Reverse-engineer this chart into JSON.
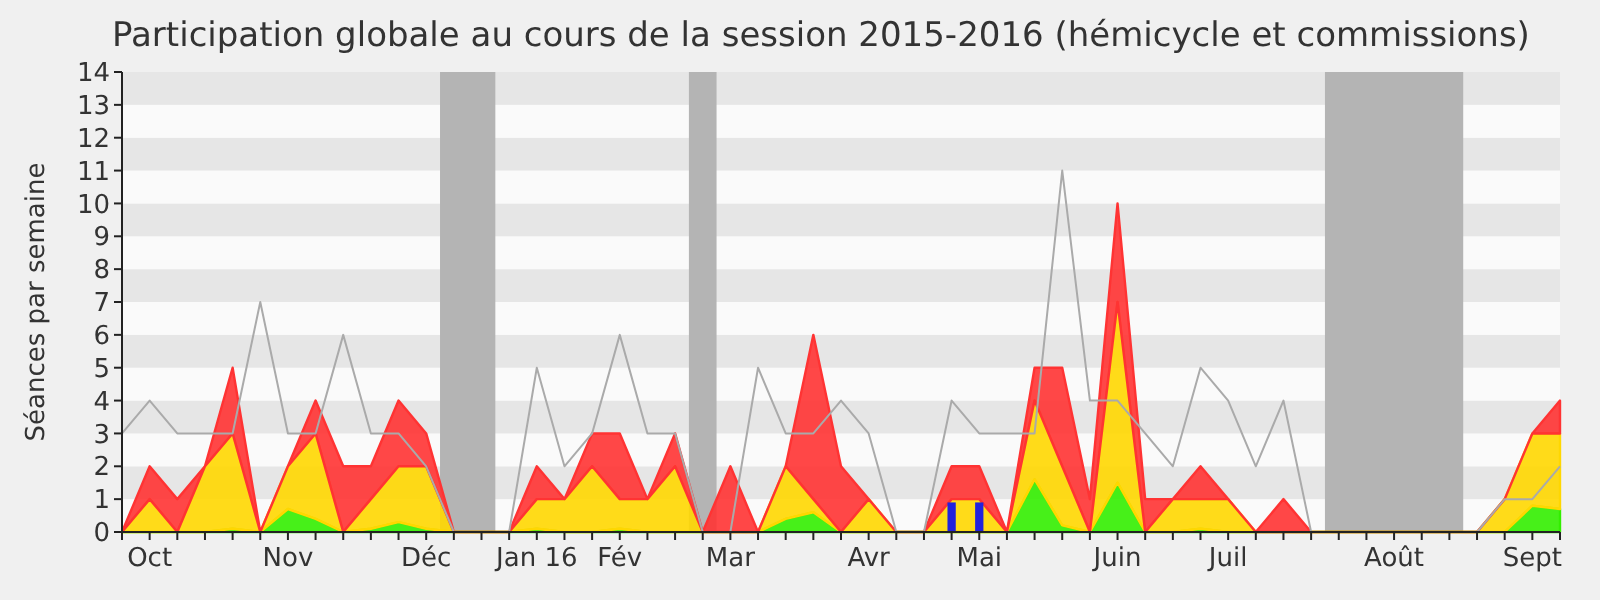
{
  "chart_data": {
    "type": "area",
    "title": "Participation globale au cours de la session 2015-2016 (hémicycle et commissions)",
    "ylabel": "Séances par semaine",
    "stacked": true,
    "categories": [
      null,
      "Oct",
      null,
      null,
      null,
      null,
      "Nov",
      null,
      null,
      null,
      null,
      "Déc",
      null,
      null,
      null,
      "Jan 16",
      null,
      null,
      "Fév",
      null,
      null,
      null,
      "Mar",
      null,
      null,
      null,
      null,
      "Avr",
      null,
      null,
      null,
      "Mai",
      null,
      null,
      null,
      null,
      "Juin",
      null,
      null,
      null,
      "Juil",
      null,
      null,
      null,
      null,
      null,
      "Août",
      null,
      null,
      null,
      null,
      "Sept",
      null
    ],
    "ylim": [
      0,
      14
    ],
    "yticks": [
      0,
      1,
      2,
      3,
      4,
      5,
      6,
      7,
      8,
      9,
      10,
      11,
      12,
      13,
      14
    ],
    "series": [
      {
        "color": "#33ee00",
        "values": [
          0,
          0,
          0,
          0,
          0.1,
          0,
          0.7,
          0.4,
          0,
          0.1,
          0.3,
          0.1,
          0,
          0,
          0,
          0.1,
          0,
          0,
          0.1,
          0,
          0,
          0,
          0,
          0,
          0.4,
          0.6,
          0,
          0,
          0,
          0,
          0,
          0,
          0,
          1.6,
          0.2,
          0,
          1.5,
          0,
          0,
          0.1,
          0,
          0,
          0,
          0,
          0,
          0,
          0,
          0,
          0,
          0,
          0,
          0.8,
          0.7
        ]
      },
      {
        "color": "#ffd700",
        "values": [
          0,
          1,
          0,
          2,
          2.9,
          0,
          1.3,
          2.6,
          0,
          0.9,
          1.7,
          1.9,
          0,
          0,
          0,
          0.9,
          1,
          2,
          0.9,
          1,
          2,
          0,
          0,
          0,
          1.6,
          0.4,
          0,
          1,
          0,
          0,
          1,
          1,
          0,
          2.4,
          1.8,
          0,
          5.5,
          0,
          1,
          0.9,
          1,
          0,
          0,
          0,
          0,
          0,
          0,
          0,
          0,
          0,
          1,
          2.2,
          2.3
        ]
      },
      {
        "color": "#ff3333",
        "values": [
          0,
          1,
          1,
          0,
          2,
          0,
          0,
          1,
          2,
          1,
          2,
          1,
          0,
          0,
          0,
          1,
          0,
          1,
          2,
          0,
          1,
          0,
          2,
          0,
          0,
          5,
          2,
          0,
          0,
          0,
          1,
          1,
          0,
          1,
          3,
          1,
          3,
          1,
          0,
          1,
          0,
          0,
          1,
          0,
          0,
          0,
          0,
          0,
          0,
          0,
          0,
          0,
          1
        ]
      },
      {
        "type": "line",
        "color": "#aaaaaa",
        "values": [
          3,
          4,
          3,
          3,
          3,
          7,
          3,
          3,
          6,
          3,
          3,
          2,
          0,
          0,
          0,
          5,
          2,
          3,
          6,
          3,
          3,
          0,
          0,
          5,
          3,
          3,
          4,
          3,
          0,
          0,
          4,
          3,
          3,
          3,
          11,
          4,
          4,
          3,
          2,
          5,
          4,
          2,
          4,
          0,
          0,
          0,
          0,
          0,
          0,
          0,
          1,
          1,
          2
        ]
      },
      {
        "type": "bar",
        "color": "#2222dd",
        "values": [
          null,
          null,
          null,
          null,
          null,
          null,
          null,
          null,
          null,
          null,
          null,
          null,
          null,
          null,
          null,
          null,
          null,
          null,
          null,
          null,
          null,
          null,
          null,
          null,
          null,
          null,
          null,
          null,
          null,
          null,
          0.9,
          0.9,
          null,
          null,
          null,
          null,
          null,
          null,
          null,
          null,
          null,
          null,
          null,
          null,
          null,
          null,
          null,
          null,
          null,
          null,
          null,
          null,
          null
        ]
      }
    ]
  }
}
